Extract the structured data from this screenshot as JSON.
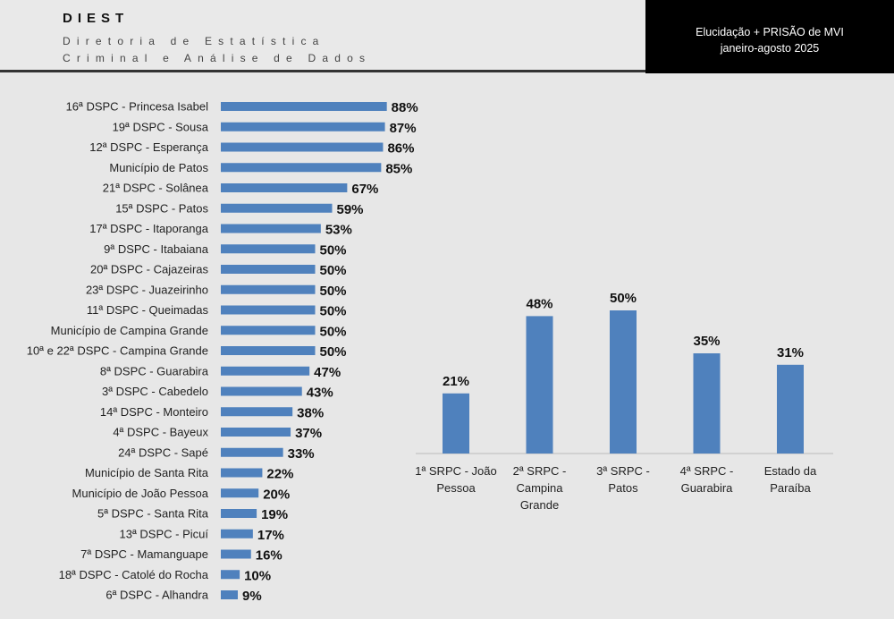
{
  "header": {
    "brand": "DIEST",
    "sub1": "Diretoria de Estatística",
    "sub2": "Criminal e Análise de Dados",
    "title": "Elucidação + PRISÃO de MVI",
    "period": "janeiro-agosto 2025"
  },
  "colors": {
    "bar": "#4f81bd"
  },
  "chart_data": [
    {
      "type": "bar",
      "orientation": "horizontal",
      "categories": [
        "16ª DSPC - Princesa Isabel",
        "19ª DSPC - Sousa",
        "12ª DSPC - Esperança",
        "Município de Patos",
        "21ª DSPC - Solânea",
        "15ª DSPC - Patos",
        "17ª DSPC - Itaporanga",
        "9ª DSPC - Itabaiana",
        "20ª DSPC - Cajazeiras",
        "23ª DSPC - Juazeirinho",
        "11ª DSPC - Queimadas",
        "Município de Campina Grande",
        "10ª e 22ª DSPC - Campina Grande",
        "8ª DSPC - Guarabira",
        "3ª DSPC - Cabedelo",
        "14ª DSPC - Monteiro",
        "4ª DSPC - Bayeux",
        "24ª DSPC - Sapé",
        "Município de Santa Rita",
        "Município de João Pessoa",
        "5ª DSPC - Santa Rita",
        "13ª DSPC - Picuí",
        "7ª DSPC - Mamanguape",
        "18ª DSPC - Catolé do Rocha",
        "6ª DSPC - Alhandra"
      ],
      "values": [
        88,
        87,
        86,
        85,
        67,
        59,
        53,
        50,
        50,
        50,
        50,
        50,
        50,
        47,
        43,
        38,
        37,
        33,
        22,
        20,
        19,
        17,
        16,
        10,
        9
      ],
      "labels": [
        "88%",
        "87%",
        "86%",
        "85%",
        "67%",
        "59%",
        "53%",
        "50%",
        "50%",
        "50%",
        "50%",
        "50%",
        "50%",
        "47%",
        "43%",
        "38%",
        "37%",
        "33%",
        "22%",
        "20%",
        "19%",
        "17%",
        "16%",
        "10%",
        "9%"
      ],
      "unit": "%"
    },
    {
      "type": "bar",
      "orientation": "vertical",
      "categories": [
        [
          "1ª SRPC - João",
          "Pessoa"
        ],
        [
          "2ª SRPC -",
          "Campina",
          "Grande"
        ],
        [
          "3ª SRPC -",
          "Patos"
        ],
        [
          "4ª SRPC -",
          "Guarabira"
        ],
        [
          "Estado da",
          "Paraíba"
        ]
      ],
      "values": [
        21,
        48,
        50,
        35,
        31
      ],
      "labels": [
        "21%",
        "48%",
        "50%",
        "35%",
        "31%"
      ],
      "unit": "%"
    }
  ]
}
